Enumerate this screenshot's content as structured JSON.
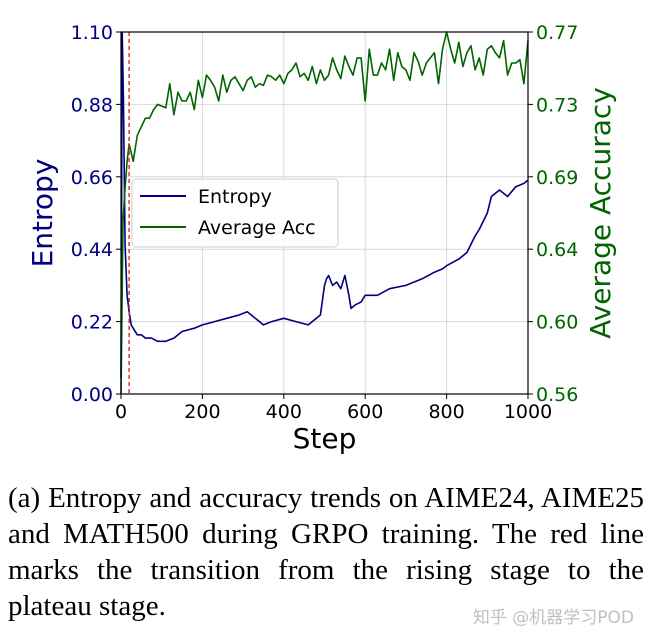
{
  "chart_data": {
    "type": "line",
    "x_label": "Step",
    "x_ticks": [
      "0",
      "200",
      "400",
      "600",
      "800",
      "1000"
    ],
    "xlim": [
      0,
      1000
    ],
    "y_left": {
      "label": "Entropy",
      "color": "#000080",
      "ylim": [
        0.0,
        1.1
      ],
      "ticks": [
        "0.00",
        "0.22",
        "0.44",
        "0.66",
        "0.88",
        "1.10"
      ]
    },
    "y_right": {
      "label": "Average Accuracy",
      "color": "#006400",
      "ylim": [
        0.56,
        0.77
      ],
      "ticks": [
        "0.56",
        "0.60",
        "0.64",
        "0.69",
        "0.73",
        "0.77"
      ]
    },
    "legend": {
      "location": "center-left",
      "entries": [
        "Entropy",
        "Average Acc"
      ]
    },
    "grid": true,
    "transition_line": {
      "x": 20,
      "color": "#d62728",
      "style": "dashed"
    },
    "series": [
      {
        "name": "Entropy",
        "axis": "left",
        "color": "#000080",
        "x": [
          0,
          3,
          6,
          10,
          15,
          20,
          25,
          30,
          40,
          50,
          60,
          75,
          90,
          110,
          130,
          150,
          180,
          200,
          230,
          260,
          290,
          310,
          330,
          350,
          370,
          400,
          430,
          460,
          490,
          500,
          505,
          510,
          520,
          530,
          540,
          550,
          560,
          565,
          575,
          590,
          600,
          630,
          660,
          700,
          740,
          770,
          790,
          800,
          830,
          850,
          870,
          880,
          900,
          910,
          930,
          950,
          970,
          990,
          1000
        ],
        "y": [
          0.05,
          1.1,
          0.9,
          0.45,
          0.3,
          0.25,
          0.21,
          0.2,
          0.18,
          0.18,
          0.17,
          0.17,
          0.16,
          0.16,
          0.17,
          0.19,
          0.2,
          0.21,
          0.22,
          0.23,
          0.24,
          0.25,
          0.23,
          0.21,
          0.22,
          0.23,
          0.22,
          0.21,
          0.24,
          0.33,
          0.35,
          0.36,
          0.33,
          0.34,
          0.32,
          0.36,
          0.3,
          0.26,
          0.27,
          0.28,
          0.3,
          0.3,
          0.32,
          0.33,
          0.35,
          0.37,
          0.38,
          0.39,
          0.41,
          0.43,
          0.48,
          0.5,
          0.55,
          0.6,
          0.62,
          0.6,
          0.63,
          0.64,
          0.65
        ]
      },
      {
        "name": "Average Acc",
        "axis": "right",
        "color": "#006400",
        "x": [
          0,
          5,
          10,
          15,
          20,
          25,
          30,
          40,
          50,
          60,
          70,
          80,
          90,
          100,
          110,
          120,
          130,
          140,
          150,
          160,
          170,
          180,
          190,
          200,
          210,
          220,
          230,
          240,
          250,
          260,
          270,
          280,
          290,
          300,
          310,
          320,
          330,
          340,
          350,
          360,
          370,
          380,
          390,
          400,
          410,
          420,
          430,
          440,
          450,
          460,
          470,
          480,
          490,
          500,
          510,
          520,
          530,
          540,
          550,
          560,
          570,
          580,
          590,
          600,
          610,
          620,
          630,
          640,
          650,
          660,
          670,
          680,
          690,
          700,
          710,
          720,
          730,
          740,
          750,
          760,
          770,
          780,
          790,
          800,
          810,
          820,
          830,
          840,
          850,
          860,
          870,
          880,
          890,
          900,
          910,
          920,
          930,
          940,
          950,
          960,
          970,
          980,
          990,
          1000
        ],
        "y": [
          0.56,
          0.66,
          0.68,
          0.695,
          0.705,
          0.7,
          0.695,
          0.71,
          0.715,
          0.72,
          0.72,
          0.725,
          0.728,
          0.727,
          0.726,
          0.74,
          0.722,
          0.735,
          0.73,
          0.73,
          0.735,
          0.725,
          0.742,
          0.732,
          0.745,
          0.742,
          0.738,
          0.73,
          0.745,
          0.735,
          0.742,
          0.744,
          0.74,
          0.736,
          0.742,
          0.744,
          0.738,
          0.74,
          0.739,
          0.745,
          0.744,
          0.742,
          0.745,
          0.74,
          0.746,
          0.748,
          0.752,
          0.744,
          0.746,
          0.742,
          0.75,
          0.74,
          0.748,
          0.742,
          0.745,
          0.755,
          0.748,
          0.743,
          0.756,
          0.75,
          0.745,
          0.755,
          0.755,
          0.73,
          0.76,
          0.745,
          0.745,
          0.752,
          0.748,
          0.76,
          0.742,
          0.758,
          0.75,
          0.748,
          0.742,
          0.758,
          0.753,
          0.745,
          0.752,
          0.755,
          0.758,
          0.74,
          0.76,
          0.77,
          0.76,
          0.752,
          0.764,
          0.75,
          0.758,
          0.762,
          0.748,
          0.755,
          0.745,
          0.76,
          0.762,
          0.758,
          0.755,
          0.765,
          0.745,
          0.752,
          0.752,
          0.754,
          0.74,
          0.765
        ]
      }
    ]
  },
  "caption": "(a) Entropy and accuracy trends on AIME24, AIME25 and MATH500 during GRPO training. The red line marks the transition from the rising stage to the plateau stage.",
  "watermark": "知乎 @机器学习POD"
}
